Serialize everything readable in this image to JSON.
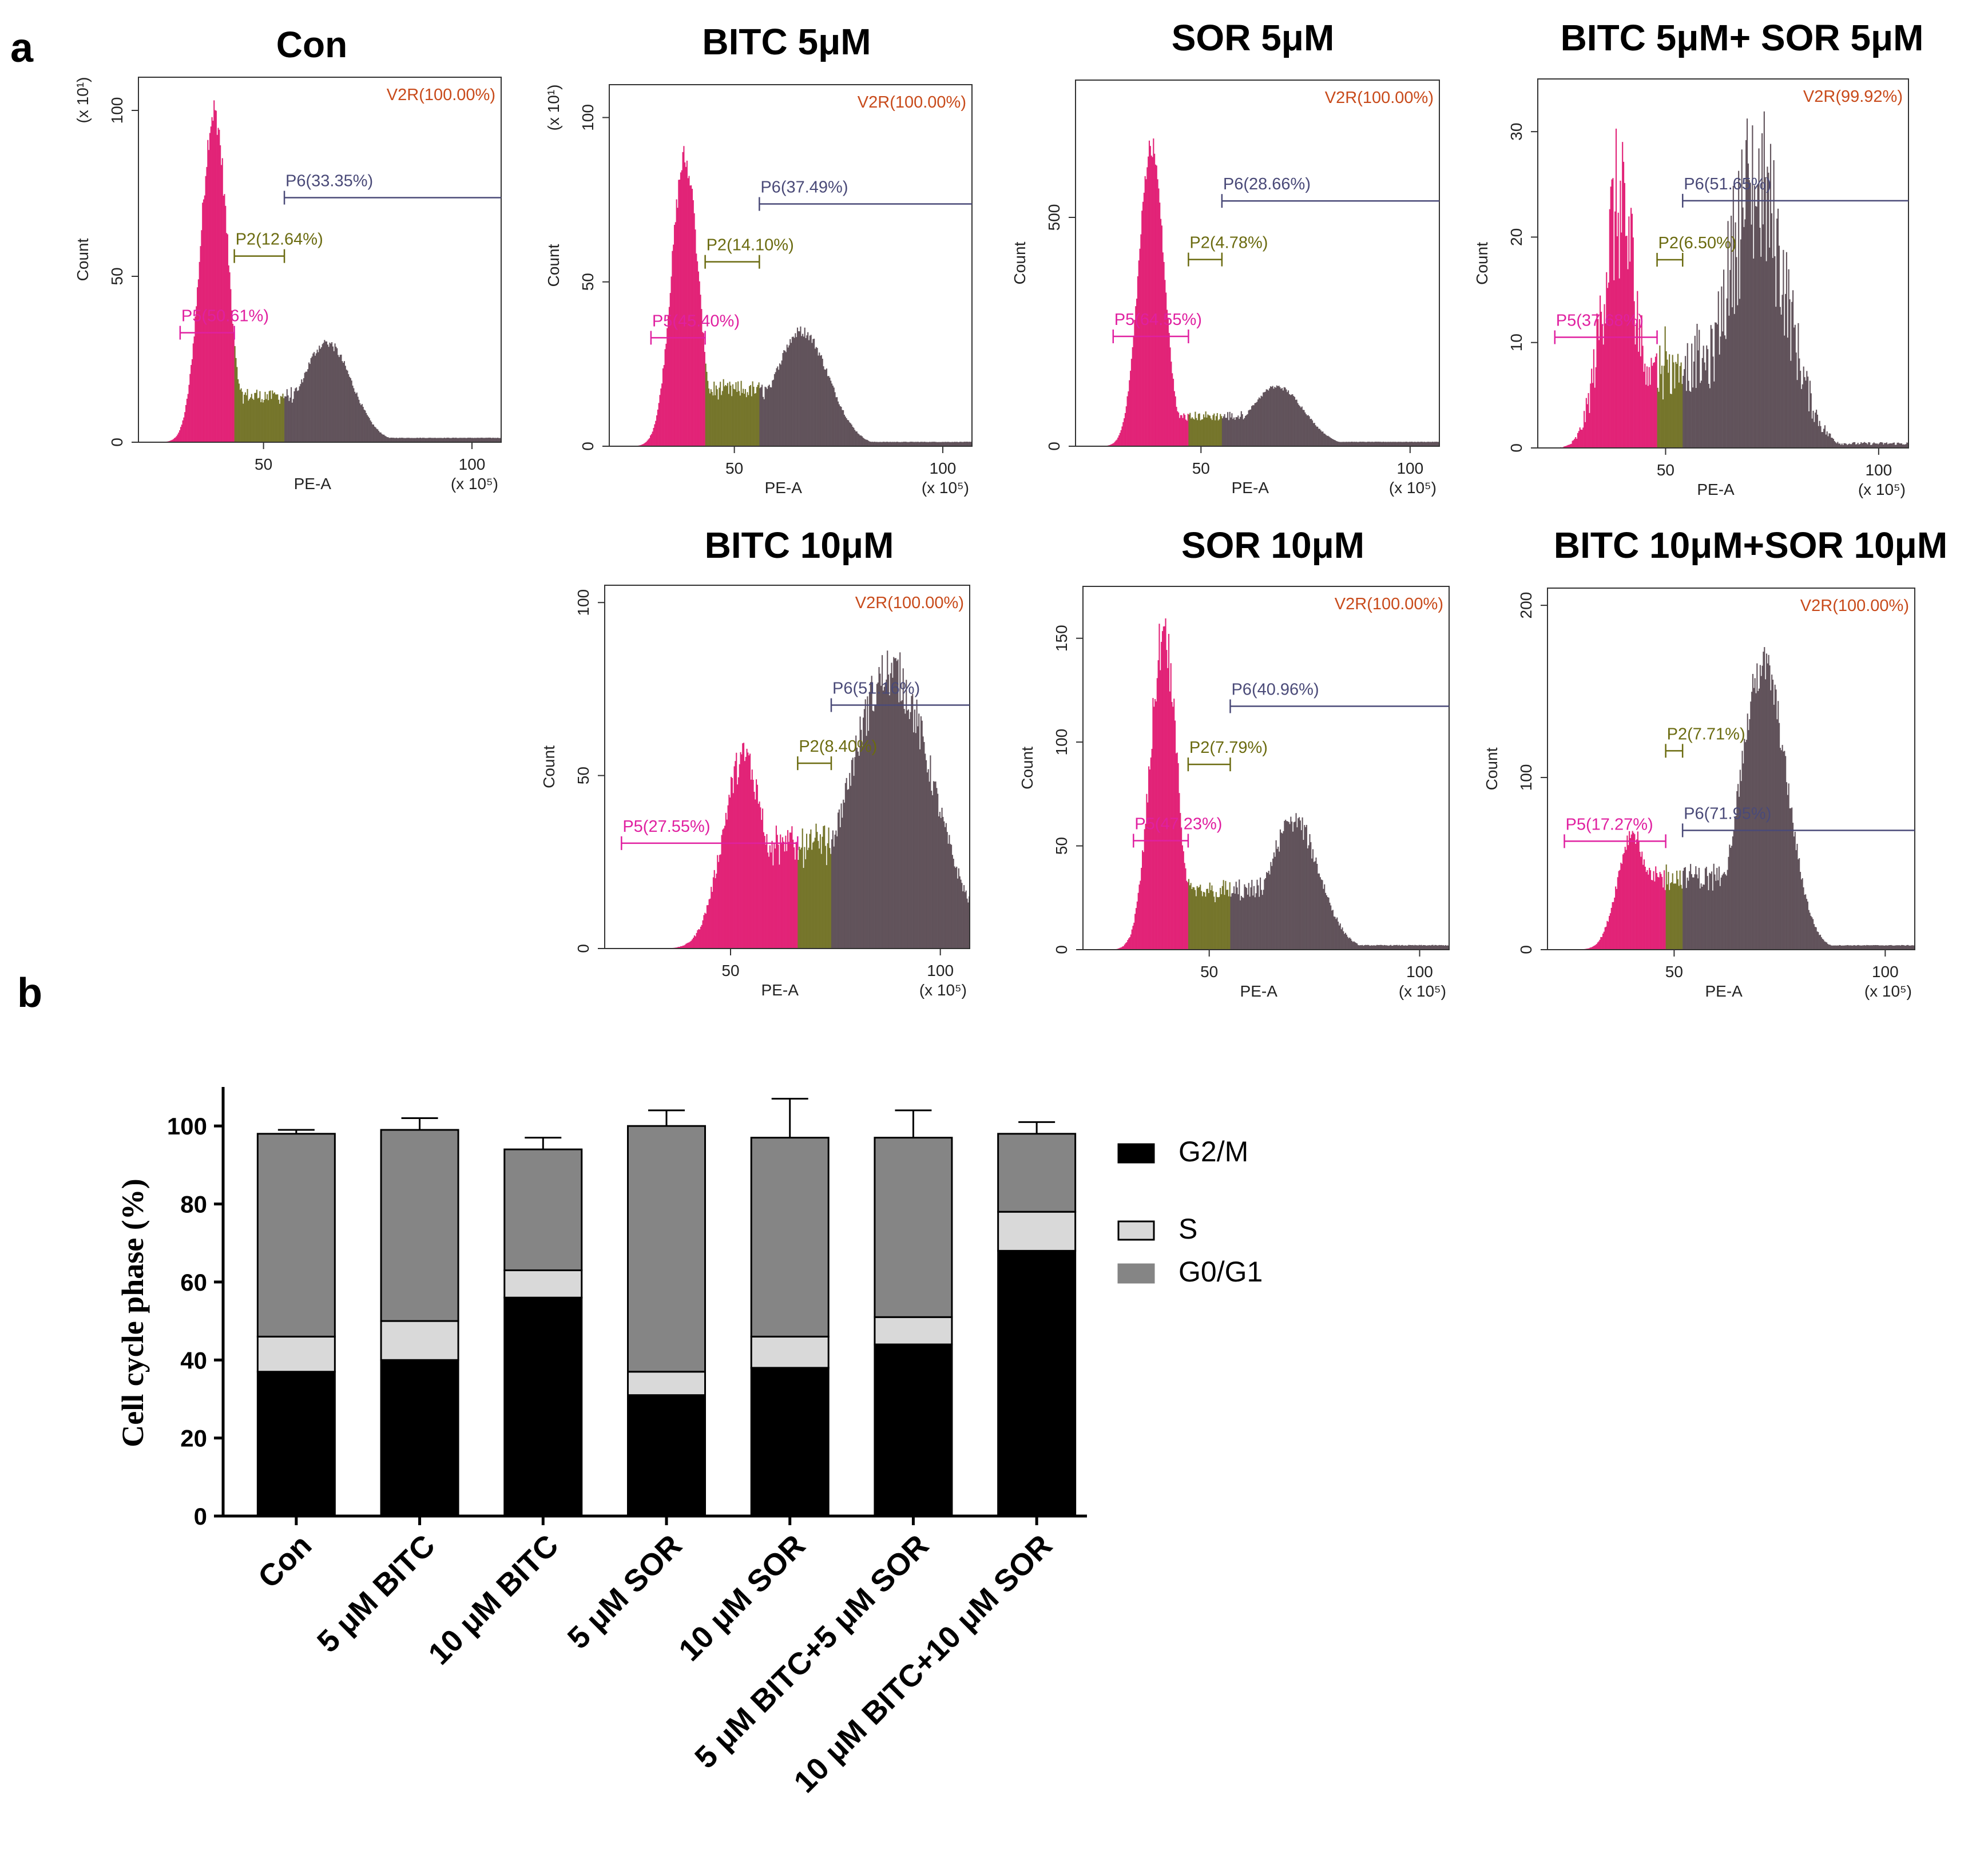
{
  "figure": {
    "panel_a_letter": "a",
    "panel_b_letter": "b"
  },
  "colors": {
    "g0g1": "#e0146e",
    "s": "#6b6b1c",
    "g2m": "#56464f",
    "tail": "#4a4a78",
    "gate_p5": "#e020a0",
    "gate_p2": "#6b6b10",
    "gate_p6": "#4a4a78",
    "gate_v2r": "#c84a1a",
    "bar_g2m": "#000000",
    "bar_s": "#d9d9d9",
    "bar_g0g1": "#858585"
  },
  "chart_data": [
    {
      "type": "histogram",
      "title": "Con",
      "xlabel": "PE-A",
      "ylabel": "Count",
      "x_multiplier": "(x 10⁵)",
      "y_multiplier": "(x 10¹)",
      "yticks": [
        "0",
        "50",
        "100"
      ],
      "xticks": [
        "50",
        "100"
      ],
      "ylim": [
        0,
        110
      ],
      "gates": {
        "V2R": "V2R(100.00%)",
        "P6": "P6(33.35%)",
        "P2": "P2(12.64%)",
        "P5": "P5(50.61%)"
      },
      "profile": {
        "g1_mean": 38,
        "g1_sd": 3.2,
        "g1_peak": 100,
        "g2_mean": 65,
        "g2_sd": 6,
        "g2_peak": 30,
        "s_level": 14,
        "noise": 0.05
      },
      "gate_ranges": {
        "P5": [
          30,
          43
        ],
        "P2": [
          43,
          55
        ],
        "P6": [
          55,
          105
        ]
      }
    },
    {
      "type": "histogram",
      "title": "BITC 5μM",
      "xlabel": "PE-A",
      "ylabel": "Count",
      "x_multiplier": "(x 10⁵)",
      "y_multiplier": "(x 10¹)",
      "yticks": [
        "0",
        "50",
        "100"
      ],
      "xticks": [
        "50",
        "100"
      ],
      "ylim": [
        0,
        110
      ],
      "gates": {
        "V2R": "V2R(100.00%)",
        "P6": "P6(37.49%)",
        "P2": "P2(14.10%)",
        "P5": "P5(45.40%)"
      },
      "profile": {
        "g1_mean": 38,
        "g1_sd": 3.2,
        "g1_peak": 88,
        "g2_mean": 66,
        "g2_sd": 6.5,
        "g2_peak": 35,
        "s_level": 17,
        "noise": 0.05
      },
      "gate_ranges": {
        "P5": [
          30,
          43
        ],
        "P2": [
          43,
          56
        ],
        "P6": [
          56,
          105
        ]
      }
    },
    {
      "type": "histogram",
      "title": "SOR 5μM",
      "xlabel": "PE-A",
      "ylabel": "Count",
      "x_multiplier": "(x 10⁵)",
      "y_multiplier": "",
      "yticks": [
        "0",
        "500"
      ],
      "xticks": [
        "50",
        "100"
      ],
      "ylim": [
        0,
        800
      ],
      "gates": {
        "V2R": "V2R(100.00%)",
        "P6": "P6(28.66%)",
        "P2": "P2(4.78%)",
        "P5": "P5(64.55%)"
      },
      "profile": {
        "g1_mean": 38,
        "g1_sd": 3,
        "g1_peak": 660,
        "g2_mean": 68,
        "g2_sd": 6.5,
        "g2_peak": 130,
        "s_level": 65,
        "noise": 0.04
      },
      "gate_ranges": {
        "P5": [
          29,
          47
        ],
        "P2": [
          47,
          55
        ],
        "P6": [
          55,
          105
        ]
      }
    },
    {
      "type": "histogram",
      "title": "BITC 5μM+ SOR 5μM",
      "xlabel": "PE-A",
      "ylabel": "Count",
      "x_multiplier": "(x 10⁵)",
      "y_multiplier": "",
      "yticks": [
        "0",
        "10",
        "20",
        "30"
      ],
      "xticks": [
        "50",
        "100"
      ],
      "ylim": [
        0,
        35
      ],
      "gates": {
        "V2R": "V2R(99.92%)",
        "P6": "P6(51.65%)",
        "P2": "P2(6.50%)",
        "P5": "P5(37.68%)"
      },
      "profile": {
        "g1_mean": 39,
        "g1_sd": 4,
        "g1_peak": 23,
        "g2_mean": 71,
        "g2_sd": 7,
        "g2_peak": 25,
        "s_level": 8,
        "noise": 0.35
      },
      "gate_ranges": {
        "P5": [
          24,
          48
        ],
        "P2": [
          48,
          54
        ],
        "P6": [
          54,
          105
        ]
      }
    },
    {
      "type": "histogram",
      "title": "BITC 10μM",
      "xlabel": "PE-A",
      "ylabel": "Count",
      "x_multiplier": "(x 10⁵)",
      "y_multiplier": "",
      "yticks": [
        "0",
        "50",
        "100"
      ],
      "xticks": [
        "50",
        "100"
      ],
      "ylim": [
        0,
        105
      ],
      "gates": {
        "V2R": "V2R(100.00%)",
        "P6": "P6(51.16%)",
        "P2": "P2(8.40%)",
        "P5": "P5(27.55%)"
      },
      "profile": {
        "g1_mean": 53,
        "g1_sd": 5,
        "g1_peak": 55,
        "g2_mean": 88,
        "g2_sd": 10,
        "g2_peak": 80,
        "s_level": 30,
        "noise": 0.1
      },
      "gate_ranges": {
        "P5": [
          24,
          66
        ],
        "P2": [
          66,
          74
        ],
        "P6": [
          74,
          107
        ]
      }
    },
    {
      "type": "histogram",
      "title": "SOR 10μM",
      "xlabel": "PE-A",
      "ylabel": "Count",
      "x_multiplier": "(x 10⁵)",
      "y_multiplier": "",
      "yticks": [
        "0",
        "50",
        "100",
        "150"
      ],
      "xticks": [
        "50",
        "100"
      ],
      "ylim": [
        0,
        175
      ],
      "gates": {
        "V2R": "V2R(100.00%)",
        "P6": "P6(40.96%)",
        "P2": "P2(7.79%)",
        "P5": "P5(47.23%)"
      },
      "profile": {
        "g1_mean": 39,
        "g1_sd": 3.2,
        "g1_peak": 150,
        "g2_mean": 70,
        "g2_sd": 6,
        "g2_peak": 62,
        "s_level": 28,
        "noise": 0.1
      },
      "gate_ranges": {
        "P5": [
          32,
          45
        ],
        "P2": [
          45,
          55
        ],
        "P6": [
          55,
          105
        ]
      }
    },
    {
      "type": "histogram",
      "title": "BITC 10μM+SOR 10μM",
      "xlabel": "PE-A",
      "ylabel": "Count",
      "x_multiplier": "(x 10⁵)",
      "y_multiplier": "",
      "yticks": [
        "0",
        "100",
        "200"
      ],
      "xticks": [
        "50",
        "100"
      ],
      "ylim": [
        0,
        210
      ],
      "gates": {
        "V2R": "V2R(100.00%)",
        "P6": "P6(71.95%)",
        "P2": "P2(7.71%)",
        "P5": "P5(17.27%)"
      },
      "profile": {
        "g1_mean": 40,
        "g1_sd": 3.5,
        "g1_peak": 68,
        "g2_mean": 71,
        "g2_sd": 5.5,
        "g2_peak": 165,
        "s_level": 42,
        "noise": 0.08
      },
      "gate_ranges": {
        "P5": [
          24,
          48
        ],
        "P2": [
          48,
          52
        ],
        "P6": [
          52,
          105
        ]
      }
    },
    {
      "type": "bar",
      "stacked": true,
      "title": "",
      "xlabel": "",
      "ylabel": "Cell cycle phase (%)",
      "ylim": [
        0,
        110
      ],
      "yticks": [
        "0",
        "20",
        "40",
        "60",
        "80",
        "100"
      ],
      "categories": [
        "Con",
        "5 μM BITC",
        "10 μM BITC",
        "5 μM SOR",
        "10 μM SOR",
        "5 μM BITC+5 μM SOR",
        "10 μM BITC+10 μM SOR"
      ],
      "series": [
        {
          "name": "G2/M",
          "values": [
            37,
            40,
            56,
            31,
            38,
            44,
            68
          ],
          "errors": [
            2,
            1,
            4,
            2,
            3,
            0,
            5
          ]
        },
        {
          "name": "S",
          "values": [
            9,
            10,
            7,
            6,
            8,
            7,
            10
          ],
          "errors": [
            3,
            3,
            1,
            1,
            1,
            1,
            3
          ]
        },
        {
          "name": "G0/G1",
          "values": [
            52,
            49,
            31,
            63,
            51,
            46,
            20
          ],
          "errors": [
            1,
            3,
            3,
            4,
            10,
            7,
            3
          ]
        }
      ],
      "legend": [
        "G2/M",
        "S",
        "G0/G1"
      ]
    }
  ]
}
